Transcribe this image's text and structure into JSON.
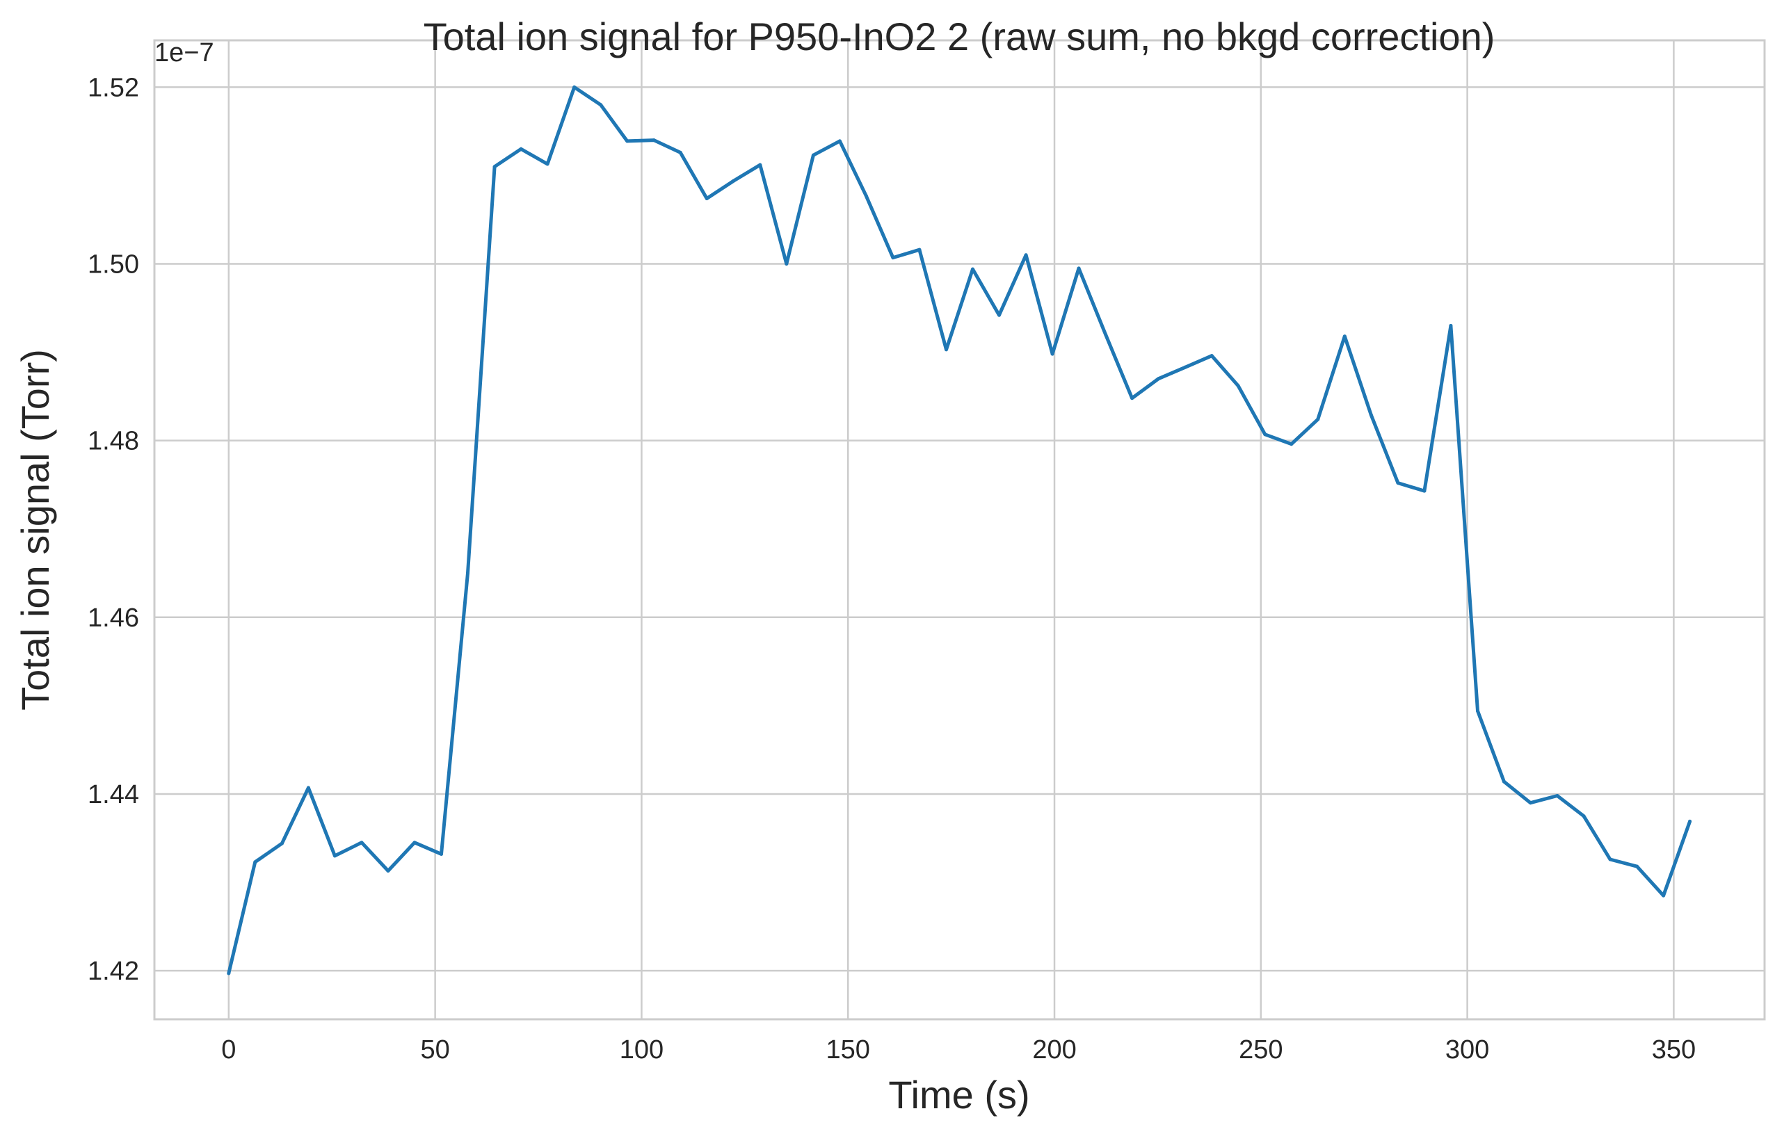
{
  "chart_data": {
    "type": "line",
    "title": "Total ion signal for P950-InO2 2 (raw sum, no bkgd correction)",
    "xlabel": "Time (s)",
    "ylabel": "Total ion signal (Torr)",
    "y_offset_label": "1e−7",
    "xlim": [
      -18,
      372
    ],
    "ylim": [
      1.4145,
      1.5253
    ],
    "x_ticks": [
      0,
      50,
      100,
      150,
      200,
      250,
      300,
      350
    ],
    "y_ticks": [
      1.42,
      1.44,
      1.46,
      1.48,
      1.5,
      1.52
    ],
    "y_tick_labels": [
      "1.42",
      "1.44",
      "1.46",
      "1.48",
      "1.50",
      "1.52"
    ],
    "grid": true,
    "line_color": "#1f77b4",
    "series": [
      {
        "x": [
          0,
          6.4,
          12.9,
          19.3,
          25.7,
          32.2,
          38.6,
          45.0,
          51.5,
          57.9,
          64.4,
          70.8,
          77.2,
          83.7,
          90.1,
          96.5,
          103.0,
          109.4,
          115.8,
          122.3,
          128.7,
          135.1,
          141.6,
          148.0,
          154.4,
          160.9,
          167.3,
          173.8,
          180.2,
          186.6,
          193.1,
          199.5,
          205.9,
          212.4,
          218.8,
          225.2,
          231.7,
          238.1,
          244.5,
          251.0,
          257.4,
          263.8,
          270.3,
          276.7,
          283.2,
          289.6,
          296.0,
          302.5,
          308.9,
          315.3,
          321.8,
          328.2,
          334.6,
          341.1,
          347.5,
          353.9
        ],
        "y": [
          1.4197,
          1.4323,
          1.4344,
          1.4407,
          1.433,
          1.4345,
          1.4313,
          1.4345,
          1.4332,
          1.465,
          1.511,
          1.513,
          1.5113,
          1.52,
          1.518,
          1.5139,
          1.514,
          1.5126,
          1.5074,
          1.5094,
          1.5112,
          1.5,
          1.5123,
          1.5139,
          1.5077,
          1.5007,
          1.5016,
          1.4903,
          1.4994,
          1.4942,
          1.501,
          1.4898,
          1.4995,
          1.492,
          1.4848,
          1.487,
          1.4883,
          1.4896,
          1.4862,
          1.4807,
          1.4796,
          1.4824,
          1.4918,
          1.4829,
          1.4752,
          1.4743,
          1.493,
          1.4494,
          1.4414,
          1.439,
          1.4398,
          1.4375,
          1.4326,
          1.4318,
          1.4285,
          1.4369
        ]
      }
    ]
  }
}
